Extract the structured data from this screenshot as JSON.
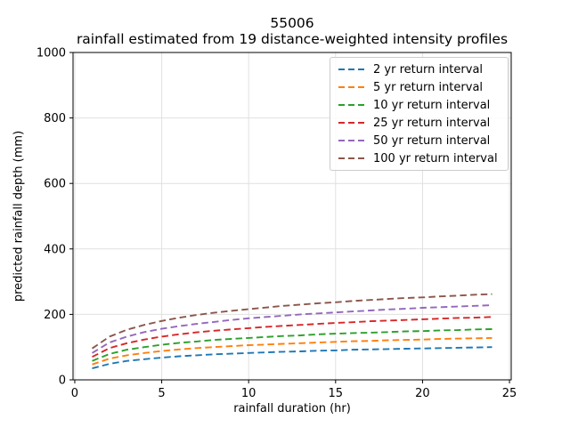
{
  "chart_data": {
    "type": "line",
    "title": "55006",
    "subtitle": "rainfall estimated from 19 distance-weighted intensity profiles",
    "xlabel": "rainfall duration (hr)",
    "ylabel": "predicted rainfall depth (mm)",
    "xlim": [
      0,
      25
    ],
    "ylim": [
      0,
      1000
    ],
    "xticks": [
      0,
      5,
      10,
      15,
      20,
      25
    ],
    "yticks": [
      0,
      200,
      400,
      600,
      800,
      1000
    ],
    "grid": true,
    "grid_color": "#e0e0e0",
    "spine_color": "#000000",
    "legend_position": "upper right",
    "line_style": "dashed",
    "x": [
      1,
      2,
      3,
      4,
      5,
      6,
      7,
      8,
      9,
      10,
      11,
      12,
      13,
      14,
      15,
      16,
      17,
      18,
      19,
      20,
      21,
      22,
      23,
      24
    ],
    "series": [
      {
        "name": "2 yr return interval",
        "color": "#1f77b4",
        "values": [
          35,
          49,
          58,
          63,
          68,
          72,
          75,
          78,
          80,
          82,
          84,
          86,
          87,
          89,
          90,
          92,
          93,
          94,
          95,
          96,
          97,
          98,
          99,
          100
        ]
      },
      {
        "name": "5 yr return interval",
        "color": "#ff7f0e",
        "values": [
          47,
          65,
          75,
          82,
          88,
          93,
          97,
          100,
          103,
          106,
          108,
          110,
          112,
          114,
          116,
          118,
          119,
          121,
          122,
          123,
          125,
          126,
          127,
          128
        ]
      },
      {
        "name": "10 yr return interval",
        "color": "#2ca02c",
        "values": [
          58,
          79,
          92,
          100,
          107,
          113,
          117,
          122,
          125,
          128,
          131,
          134,
          136,
          139,
          141,
          143,
          144,
          146,
          148,
          149,
          151,
          152,
          154,
          155
        ]
      },
      {
        "name": "25 yr return interval",
        "color": "#d62728",
        "values": [
          70,
          97,
          112,
          123,
          132,
          139,
          145,
          150,
          154,
          158,
          162,
          165,
          168,
          171,
          174,
          176,
          179,
          181,
          183,
          185,
          187,
          189,
          190,
          192
        ]
      },
      {
        "name": "50 yr return interval",
        "color": "#9467bd",
        "values": [
          82,
          114,
          132,
          146,
          156,
          164,
          171,
          177,
          183,
          188,
          192,
          196,
          200,
          203,
          206,
          209,
          212,
          215,
          217,
          220,
          222,
          224,
          226,
          228
        ]
      },
      {
        "name": "100 yr return interval",
        "color": "#8c564b",
        "values": [
          96,
          132,
          153,
          168,
          180,
          190,
          198,
          205,
          211,
          216,
          221,
          226,
          230,
          234,
          237,
          241,
          244,
          247,
          250,
          252,
          255,
          257,
          260,
          262
        ]
      }
    ]
  }
}
